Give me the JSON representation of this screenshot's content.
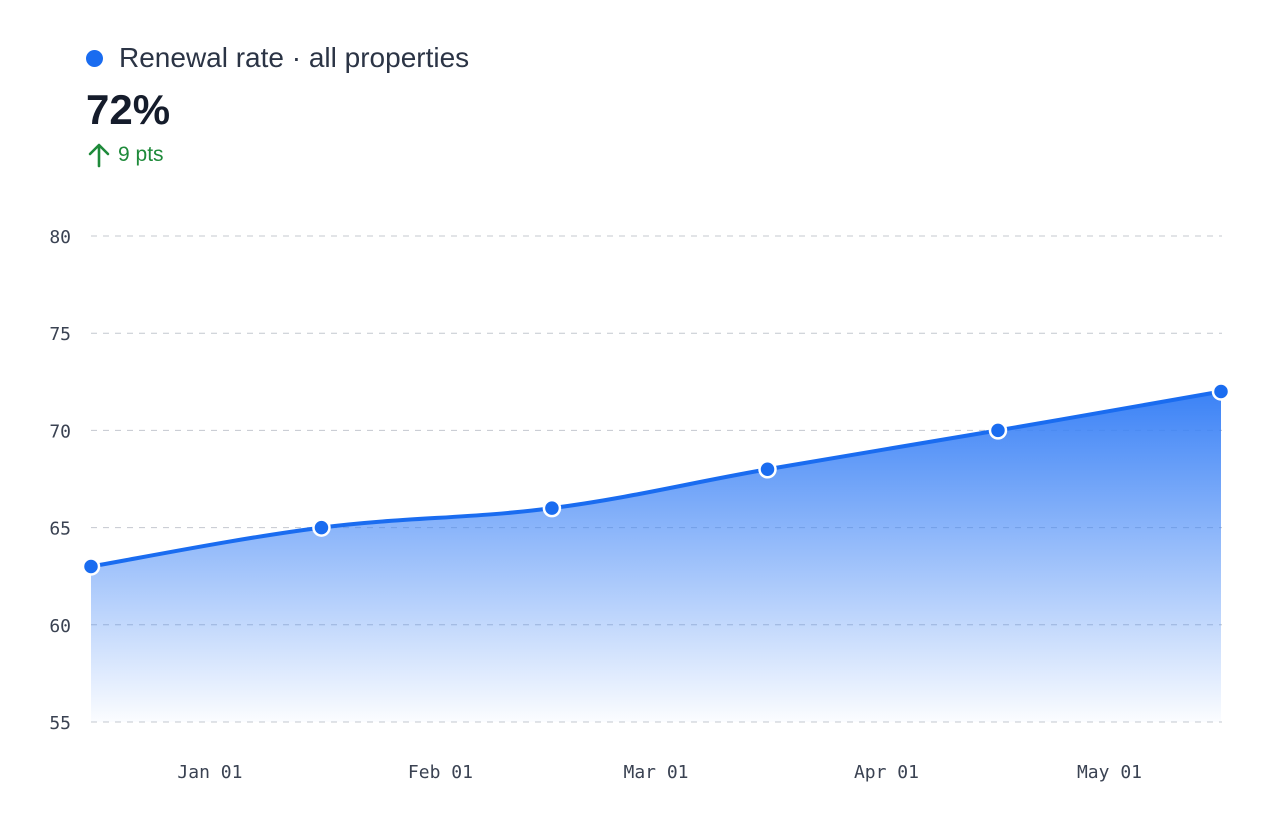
{
  "header": {
    "legend_label": "Renewal rate · all properties",
    "kpi_value": "72%",
    "kpi_delta": "9 pts",
    "delta_direction": "up"
  },
  "colors": {
    "series": "#1a6cf0",
    "delta_positive": "#1e8a3a",
    "grid": "#c4c8cf"
  },
  "chart_data": {
    "type": "area",
    "series": [
      {
        "name": "Renewal rate · all properties",
        "points": [
          {
            "x": "2023-12-16",
            "y": 63
          },
          {
            "x": "2024-01-16",
            "y": 65
          },
          {
            "x": "2024-02-16",
            "y": 66
          },
          {
            "x": "2024-03-16",
            "y": 68
          },
          {
            "x": "2024-04-16",
            "y": 70
          },
          {
            "x": "2024-05-16",
            "y": 72
          }
        ]
      }
    ],
    "x_ticks": [
      {
        "label": "Jan 01",
        "x": "2024-01-01"
      },
      {
        "label": "Feb 01",
        "x": "2024-02-01"
      },
      {
        "label": "Mar 01",
        "x": "2024-03-01"
      },
      {
        "label": "Apr 01",
        "x": "2024-04-01"
      },
      {
        "label": "May 01",
        "x": "2024-05-01"
      }
    ],
    "xlim": [
      "2023-12-16",
      "2024-05-16"
    ],
    "y_ticks": [
      55,
      60,
      65,
      70,
      75,
      80
    ],
    "ylim": [
      55,
      80
    ],
    "grid": true,
    "grid_style": "dashed",
    "title": "",
    "xlabel": "",
    "ylabel": ""
  }
}
